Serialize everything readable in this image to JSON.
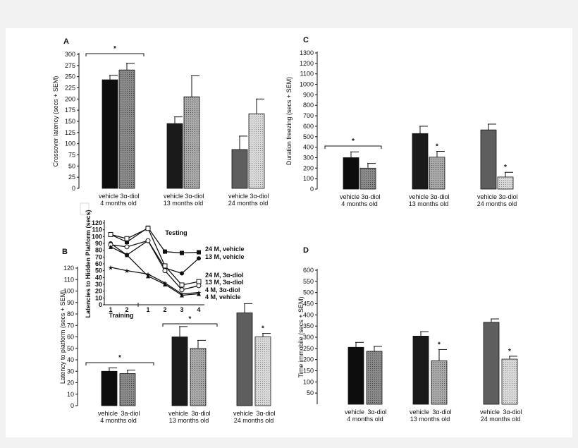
{
  "chart_data": [
    {
      "panel": "A",
      "type": "bar",
      "ylabel": "Crossover latency (secs + SEM)",
      "ylim": [
        0,
        300
      ],
      "yticks": [
        0,
        25,
        50,
        75,
        100,
        125,
        150,
        175,
        200,
        225,
        250,
        275,
        300
      ],
      "groups": [
        {
          "bar_labels": [
            "vehicle",
            "3α-diol"
          ],
          "label": "4 months old",
          "values": [
            243,
            265
          ],
          "errors": [
            10,
            15
          ]
        },
        {
          "bar_labels": [
            "vehicle",
            "3α-diol"
          ],
          "label": "13 months old",
          "values": [
            145,
            205
          ],
          "errors": [
            15,
            47
          ]
        },
        {
          "bar_labels": [
            "vehicle",
            "3α-diol"
          ],
          "label": "24 months old",
          "values": [
            87,
            167
          ],
          "errors": [
            30,
            33
          ]
        }
      ],
      "annotations": [
        {
          "text": "*",
          "group": 0
        }
      ]
    },
    {
      "panel": "C",
      "type": "bar",
      "ylabel": "Duration freezing (secs + SEM)",
      "ylim": [
        0,
        1300
      ],
      "yticks": [
        0,
        100,
        200,
        300,
        400,
        500,
        600,
        700,
        800,
        900,
        1000,
        1100,
        1200,
        1300
      ],
      "groups": [
        {
          "bar_labels": [
            "vehicle",
            "3α-diol"
          ],
          "label": "4 months old",
          "values": [
            300,
            200
          ],
          "errors": [
            55,
            45
          ]
        },
        {
          "bar_labels": [
            "vehicle",
            "3α-diol"
          ],
          "label": "13 months old",
          "values": [
            530,
            305
          ],
          "errors": [
            70,
            55
          ]
        },
        {
          "bar_labels": [
            "vehicle",
            "3α-diol"
          ],
          "label": "24 months old",
          "values": [
            565,
            115
          ],
          "errors": [
            55,
            45
          ]
        }
      ],
      "annotations": [
        {
          "text": "*",
          "group": 0
        },
        {
          "text": "*",
          "group": 1,
          "bar": 1
        },
        {
          "text": "*",
          "group": 2,
          "bar": 1
        }
      ]
    },
    {
      "panel": "B",
      "type": "bar",
      "ylabel": "Latency to platform (secs + SEM)",
      "ylim": [
        0,
        120
      ],
      "yticks": [
        0,
        10,
        20,
        30,
        40,
        50,
        60,
        70,
        80,
        90,
        100,
        110,
        120
      ],
      "groups": [
        {
          "bar_labels": [
            "vehicle",
            "3a-diol"
          ],
          "label": "4 months old",
          "values": [
            30,
            28
          ],
          "errors": [
            3,
            3
          ]
        },
        {
          "bar_labels": [
            "vehicle",
            "3α-diol"
          ],
          "label": "13 months old",
          "values": [
            60,
            50
          ],
          "errors": [
            9,
            7
          ]
        },
        {
          "bar_labels": [
            "vehicle",
            "3α-diol"
          ],
          "label": "24 months old",
          "values": [
            81,
            60
          ],
          "errors": [
            8,
            3
          ]
        }
      ],
      "annotations": [
        {
          "text": "*",
          "group": 0
        },
        {
          "text": "*",
          "group": 1
        },
        {
          "text": "*",
          "group": 2,
          "bar": 1
        }
      ]
    },
    {
      "panel": "B-inset",
      "type": "line",
      "ylabel": "Latencies to Hidden Platform (secs)",
      "ylim": [
        0,
        120
      ],
      "yticks": [
        0,
        10,
        20,
        30,
        40,
        50,
        60,
        70,
        80,
        90,
        100,
        110,
        120
      ],
      "x": [
        "1",
        "2",
        "1",
        "2",
        "3",
        "4"
      ],
      "xgroups": [
        "Training",
        "Testing"
      ],
      "series": [
        {
          "name": "24 M, vehicle",
          "values": [
            103,
            92,
            113,
            78,
            76,
            77
          ]
        },
        {
          "name": "13 M, vehicle",
          "values": [
            90,
            73,
            94,
            54,
            46,
            68
          ]
        },
        {
          "name": "24 M, 3α-diol",
          "values": [
            103,
            97,
            112,
            57,
            29,
            34
          ]
        },
        {
          "name": "13 M, 3α-diol",
          "values": [
            88,
            85,
            94,
            50,
            22,
            28
          ]
        },
        {
          "name": "4 M, 3α-diol",
          "values": [
            55,
            50,
            45,
            32,
            16,
            18
          ]
        },
        {
          "name": "4 M, vehicle",
          "values": [
            85,
            73,
            42,
            30,
            14,
            16
          ]
        }
      ]
    },
    {
      "panel": "D",
      "type": "bar",
      "ylabel": "Time immobile (secs + SEM)",
      "ylim": [
        0,
        600
      ],
      "yticks": [
        50,
        100,
        150,
        200,
        250,
        300,
        350,
        400,
        450,
        500,
        550,
        600
      ],
      "groups": [
        {
          "bar_labels": [
            "vehicle",
            "3α-diol"
          ],
          "label": "4 months old",
          "values": [
            255,
            237
          ],
          "errors": [
            22,
            22
          ]
        },
        {
          "bar_labels": [
            "vehicle",
            "3α-diol"
          ],
          "label": "13 months old",
          "values": [
            305,
            195
          ],
          "errors": [
            20,
            50
          ]
        },
        {
          "bar_labels": [
            "vehicle",
            "3α-diol"
          ],
          "label": "24 months old",
          "values": [
            367,
            202
          ],
          "errors": [
            15,
            13
          ]
        }
      ],
      "annotations": [
        {
          "text": "*",
          "group": 1,
          "bar": 1
        },
        {
          "text": "*",
          "group": 2,
          "bar": 1
        }
      ]
    }
  ],
  "colors": {
    "bar_young": "#111111",
    "bar_mid": "#1b1b1b",
    "bar_old": "#616161",
    "bar_diol_young": "#8a8a8a",
    "bar_diol_mid": "#a8a8a8",
    "bar_diol_old": "#cfcfcf"
  }
}
